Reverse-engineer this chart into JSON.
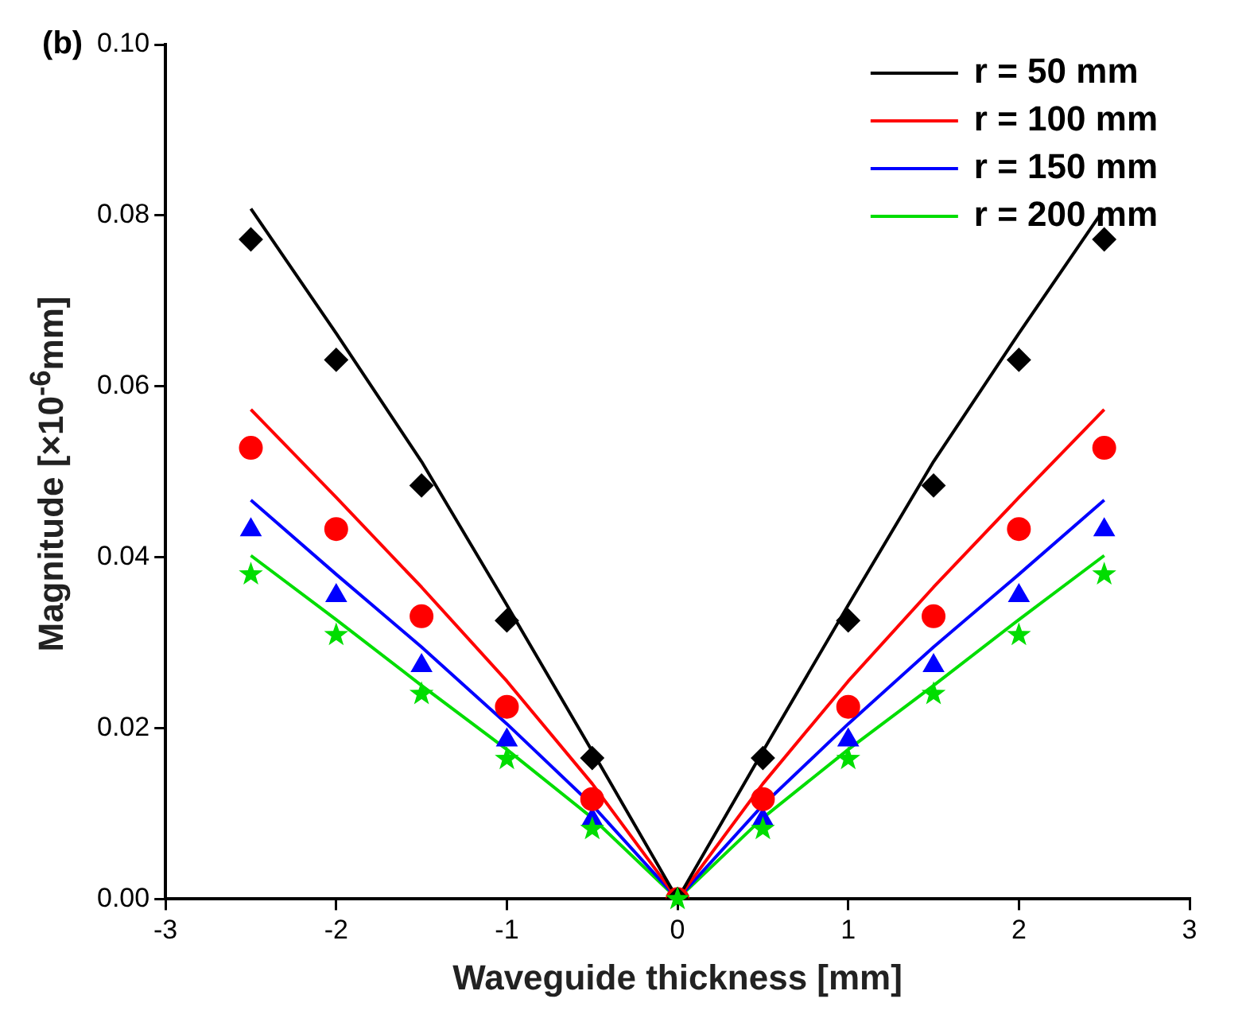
{
  "chart_data": {
    "type": "line",
    "xlabel": "Waveguide thickness [mm]",
    "ylabel": "Magnitude [×10$^{-6}$mm]",
    "annotations": [
      "(b)"
    ],
    "x": [
      -2.5,
      -2,
      -1.5,
      -1,
      -0.5,
      0,
      0.5,
      1,
      1.5,
      2,
      2.5
    ],
    "xlim": [
      -3,
      3
    ],
    "xticks": [
      -3,
      -2,
      -1,
      0,
      1,
      2,
      3
    ],
    "ylim": [
      0,
      0.1
    ],
    "yticks": [
      {
        "value": 0,
        "label": "0.00"
      },
      {
        "value": 0.02,
        "label": "0.02"
      },
      {
        "value": 0.04,
        "label": "0.04"
      },
      {
        "value": 0.06,
        "label": "0.06"
      },
      {
        "value": 0.08,
        "label": "0.08"
      },
      {
        "value": 0.1,
        "label": "0.10"
      }
    ],
    "grid": false,
    "legend": "top right",
    "line_style": "solid",
    "series": [
      {
        "name": "r = 50 mm",
        "marker": "none",
        "color": "#000000",
        "values": [
          0.0808,
          0.0662,
          0.0512,
          0.0344,
          0.0173,
          0,
          0.0173,
          0.0344,
          0.0512,
          0.0662,
          0.0808
        ]
      },
      {
        "name": "r = 100 mm",
        "marker": "none",
        "color": "#ff0000",
        "values": [
          0.0573,
          0.047,
          0.0365,
          0.0255,
          0.0135,
          0,
          0.0135,
          0.0255,
          0.0365,
          0.047,
          0.0573
        ]
      },
      {
        "name": "r = 150 mm",
        "marker": "none",
        "color": "#0000ff",
        "values": [
          0.0467,
          0.038,
          0.0295,
          0.0205,
          0.011,
          0,
          0.011,
          0.0205,
          0.0295,
          0.038,
          0.0467
        ]
      },
      {
        "name": "r = 200 mm",
        "marker": "none",
        "color": "#00dd00",
        "values": [
          0.0402,
          0.0327,
          0.025,
          0.0175,
          0.0095,
          0,
          0.0095,
          0.0175,
          0.025,
          0.0327,
          0.0402
        ]
      },
      {
        "type": "scatter",
        "marker": "diamond",
        "color": "#000000",
        "values": [
          0.0772,
          0.0631,
          0.0484,
          0.0326,
          0.0165,
          0,
          0.0165,
          0.0326,
          0.0484,
          0.0631,
          0.0772
        ]
      },
      {
        "type": "scatter",
        "marker": "circle",
        "color": "#ff0000",
        "values": [
          0.0528,
          0.0433,
          0.0331,
          0.0225,
          0.0117,
          0,
          0.0117,
          0.0225,
          0.0331,
          0.0433,
          0.0528
        ]
      },
      {
        "type": "scatter",
        "marker": "triangle",
        "color": "#0000ff",
        "values": [
          0.0432,
          0.0355,
          0.0273,
          0.0186,
          0.0093,
          null,
          0.0093,
          0.0186,
          0.0273,
          0.0355,
          0.0432
        ]
      },
      {
        "type": "scatter",
        "marker": "star",
        "color": "#00dd00",
        "values": [
          0.038,
          0.0309,
          0.024,
          0.0164,
          0.0082,
          0,
          0.0082,
          0.0164,
          0.024,
          0.0309,
          0.038
        ]
      }
    ]
  }
}
